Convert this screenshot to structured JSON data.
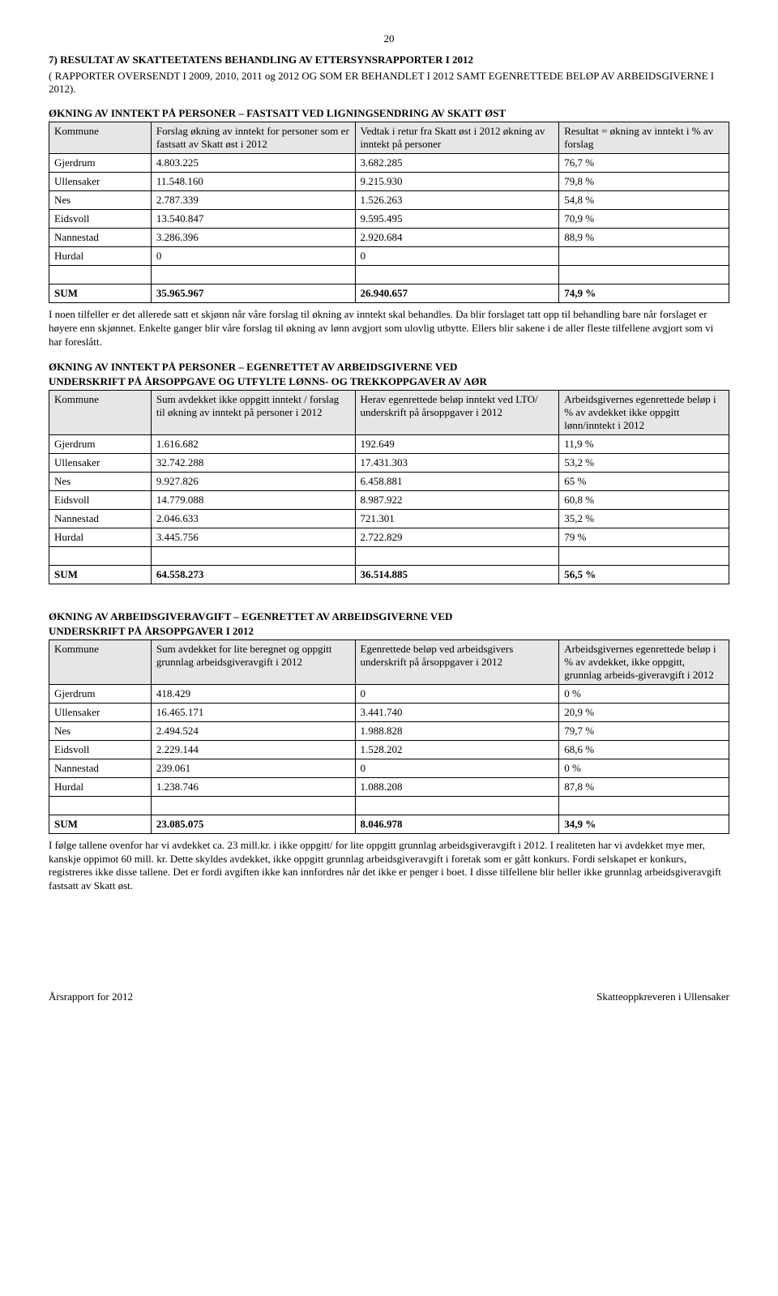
{
  "pageNumber": "20",
  "section7": {
    "heading": "7)  RESULTAT AV SKATTEETATENS BEHANDLING AV ETTERSYNSRAPPORTER I 2012",
    "subline": "( RAPPORTER OVERSENDT I  2009, 2010, 2011 og 2012 OG SOM ER BEHANDLET I 2012 SAMT EGENRETTEDE BELØP AV ARBEIDSGIVERNE I 2012)."
  },
  "table1": {
    "title": "ØKNING AV INNTEKT PÅ PERSONER – FASTSATT VED LIGNINGSENDRING AV SKATT ØST",
    "headers": [
      "Kommune",
      "Forslag økning av inntekt for personer som er fastsatt av Skatt øst i 2012",
      "Vedtak i retur fra Skatt øst i 2012 økning av inntekt på personer",
      "Resultat = økning av inntekt i % av forslag"
    ],
    "rows": [
      [
        "Gjerdrum",
        "4.803.225",
        "3.682.285",
        "76,7 %"
      ],
      [
        "Ullensaker",
        "11.548.160",
        "9.215.930",
        "79,8 %"
      ],
      [
        "Nes",
        "2.787.339",
        "1.526.263",
        "54,8 %"
      ],
      [
        "Eidsvoll",
        "13.540.847",
        "9.595.495",
        "70,9 %"
      ],
      [
        "Nannestad",
        "3.286.396",
        "2.920.684",
        "88,9 %"
      ],
      [
        "Hurdal",
        "0",
        "0",
        ""
      ]
    ],
    "sum": [
      "SUM",
      "35.965.967",
      "26.940.657",
      "74,9 %"
    ]
  },
  "para1": "I noen tilfeller er det allerede satt et skjønn når våre forslag til økning av inntekt skal behandles. Da blir forslaget tatt opp til behandling bare når forslaget er høyere enn skjønnet. Enkelte ganger blir våre forslag til økning av lønn avgjort som ulovlig utbytte. Ellers blir sakene i de aller fleste tilfellene avgjort som vi har foreslått.",
  "table2": {
    "titleLine1": "ØKNING AV INNTEKT PÅ PERSONER – EGENRETTET AV ARBEIDSGIVERNE VED",
    "titleLine2": "UNDERSKRIFT PÅ ÅRSOPPGAVE OG UTFYLTE LØNNS- OG TREKKOPPGAVER AV AØR",
    "headers": [
      "Kommune",
      "Sum avdekket ikke oppgitt inntekt / forslag til økning av inntekt på personer i 2012",
      "Herav egenrettede beløp inntekt ved LTO/ underskrift på årsoppgaver i 2012",
      "Arbeidsgivernes egenrettede beløp i % av avdekket ikke oppgitt lønn/inntekt i 2012"
    ],
    "rows": [
      [
        "Gjerdrum",
        "1.616.682",
        "192.649",
        "11,9 %"
      ],
      [
        "Ullensaker",
        "32.742.288",
        "17.431.303",
        "53,2 %"
      ],
      [
        "Nes",
        "9.927.826",
        "6.458.881",
        "65 %"
      ],
      [
        "Eidsvoll",
        "14.779.088",
        "8.987.922",
        "60,8 %"
      ],
      [
        "Nannestad",
        "2.046.633",
        "721.301",
        "35,2 %"
      ],
      [
        "Hurdal",
        "3.445.756",
        "2.722.829",
        "79 %"
      ]
    ],
    "sum": [
      "SUM",
      "64.558.273",
      "36.514.885",
      "56,5 %"
    ]
  },
  "table3": {
    "titleLine1": "ØKNING AV ARBEIDSGIVERAVGIFT – EGENRETTET AV ARBEIDSGIVERNE VED",
    "titleLine2": "UNDERSKRIFT PÅ ÅRSOPPGAVER I 2012",
    "headers": [
      "Kommune",
      "Sum avdekket for lite beregnet og oppgitt grunnlag arbeidsgiveravgift i 2012",
      "Egenrettede beløp ved arbeidsgivers underskrift på årsoppgaver i 2012",
      "Arbeidsgivernes egenrettede beløp i % av avdekket, ikke oppgitt, grunnlag arbeids-giveravgift i 2012"
    ],
    "rows": [
      [
        "Gjerdrum",
        "418.429",
        "0",
        "0 %"
      ],
      [
        "Ullensaker",
        "16.465.171",
        "3.441.740",
        "20,9 %"
      ],
      [
        "Nes",
        "2.494.524",
        "1.988.828",
        "79,7 %"
      ],
      [
        "Eidsvoll",
        "2.229.144",
        "1.528.202",
        " 68,6  %"
      ],
      [
        "Nannestad",
        "239.061",
        "0",
        "0 %"
      ],
      [
        "Hurdal",
        "1.238.746",
        "1.088.208",
        "87,8 %"
      ]
    ],
    "sum": [
      "SUM",
      "23.085.075",
      "8.046.978",
      "34,9 %"
    ]
  },
  "para2": "I følge tallene ovenfor har vi avdekket ca. 23 mill.kr. i ikke oppgitt/ for lite oppgitt grunnlag arbeidsgiveravgift i 2012. I realiteten har vi avdekket mye mer, kanskje oppimot 60 mill. kr. Dette skyldes avdekket, ikke oppgitt grunnlag arbeidsgiveravgift i foretak som er gått konkurs. Fordi selskapet er konkurs, registreres ikke disse tallene. Det er fordi avgiften ikke kan innfordres når det ikke er penger i boet. I disse tilfellene blir heller ikke grunnlag arbeidsgiveravgift fastsatt av Skatt øst.",
  "footer": {
    "left": "Årsrapport for 2012",
    "right": "Skatteoppkreveren i Ullensaker"
  },
  "columnWidths": [
    "15%",
    "30%",
    "30%",
    "25%"
  ]
}
